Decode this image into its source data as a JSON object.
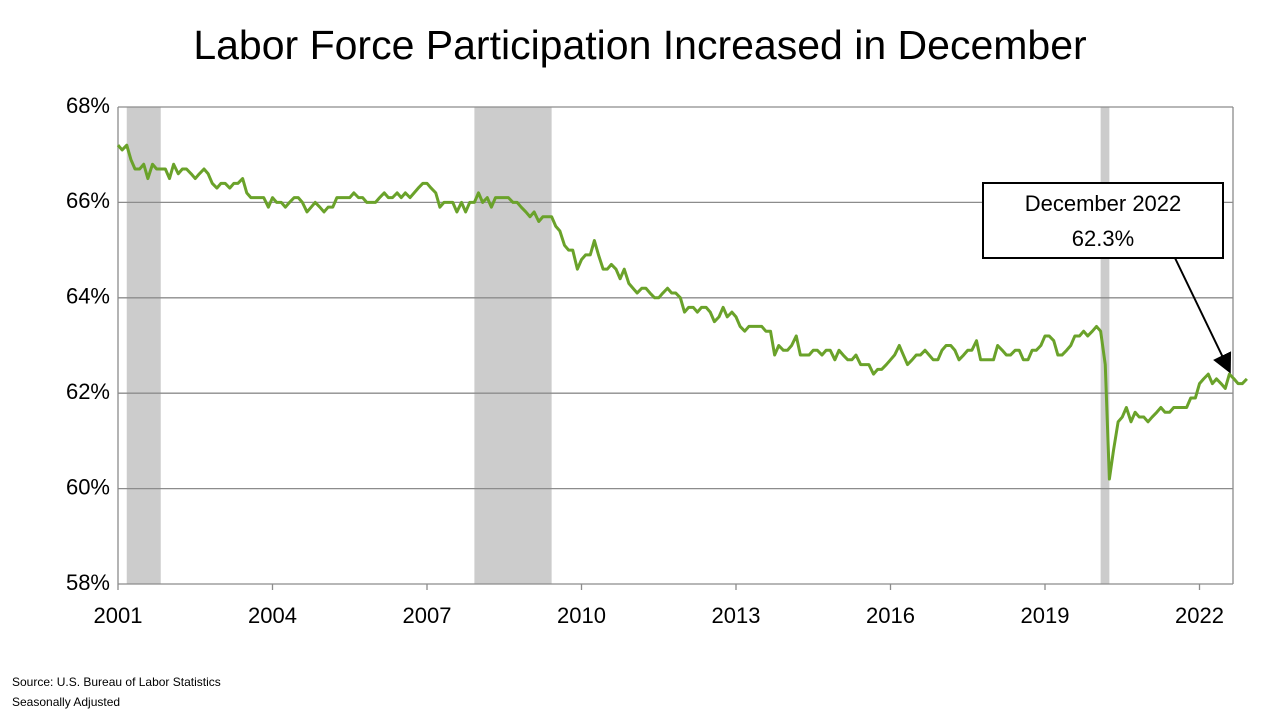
{
  "chart_data": {
    "type": "line",
    "title": "Labor Force Participation Increased in December",
    "color": "#6aa22a",
    "shade_color": "#cccccc",
    "grid": true,
    "xlim": [
      2001,
      2023
    ],
    "xticks": [
      2001,
      2004,
      2007,
      2010,
      2013,
      2016,
      2019,
      2022
    ],
    "ylim": [
      58,
      68
    ],
    "yticks": [
      {
        "value": 58,
        "label": "58%"
      },
      {
        "value": 60,
        "label": "60%"
      },
      {
        "value": 62,
        "label": "62%"
      },
      {
        "value": 64,
        "label": "64%"
      },
      {
        "value": 66,
        "label": "66%"
      },
      {
        "value": 68,
        "label": "68%"
      }
    ],
    "shaded_periods": [
      [
        2001.17,
        2001.83
      ],
      [
        2007.92,
        2009.42
      ],
      [
        2020.08,
        2020.25
      ]
    ],
    "annotation": {
      "lines": [
        "December 2022",
        "62.3%"
      ]
    },
    "notes": [
      "Source: U.S. Bureau of Labor Statistics",
      "Seasonally Adjusted"
    ],
    "x": [
      2001.0,
      2001.08,
      2001.17,
      2001.25,
      2001.33,
      2001.42,
      2001.5,
      2001.58,
      2001.67,
      2001.75,
      2001.83,
      2001.92,
      2002.0,
      2002.08,
      2002.17,
      2002.25,
      2002.33,
      2002.42,
      2002.5,
      2002.58,
      2002.67,
      2002.75,
      2002.83,
      2002.92,
      2003.0,
      2003.08,
      2003.17,
      2003.25,
      2003.33,
      2003.42,
      2003.5,
      2003.58,
      2003.67,
      2003.75,
      2003.83,
      2003.92,
      2004.0,
      2004.08,
      2004.17,
      2004.25,
      2004.33,
      2004.42,
      2004.5,
      2004.58,
      2004.67,
      2004.75,
      2004.83,
      2004.92,
      2005.0,
      2005.08,
      2005.17,
      2005.25,
      2005.33,
      2005.42,
      2005.5,
      2005.58,
      2005.67,
      2005.75,
      2005.83,
      2005.92,
      2006.0,
      2006.08,
      2006.17,
      2006.25,
      2006.33,
      2006.42,
      2006.5,
      2006.58,
      2006.67,
      2006.75,
      2006.83,
      2006.92,
      2007.0,
      2007.08,
      2007.17,
      2007.25,
      2007.33,
      2007.42,
      2007.5,
      2007.58,
      2007.67,
      2007.75,
      2007.83,
      2007.92,
      2008.0,
      2008.08,
      2008.17,
      2008.25,
      2008.33,
      2008.42,
      2008.5,
      2008.58,
      2008.67,
      2008.75,
      2008.83,
      2008.92,
      2009.0,
      2009.08,
      2009.17,
      2009.25,
      2009.33,
      2009.42,
      2009.5,
      2009.58,
      2009.67,
      2009.75,
      2009.83,
      2009.92,
      2010.0,
      2010.08,
      2010.17,
      2010.25,
      2010.33,
      2010.42,
      2010.5,
      2010.58,
      2010.67,
      2010.75,
      2010.83,
      2010.92,
      2011.0,
      2011.08,
      2011.17,
      2011.25,
      2011.33,
      2011.42,
      2011.5,
      2011.58,
      2011.67,
      2011.75,
      2011.83,
      2011.92,
      2012.0,
      2012.08,
      2012.17,
      2012.25,
      2012.33,
      2012.42,
      2012.5,
      2012.58,
      2012.67,
      2012.75,
      2012.83,
      2012.92,
      2013.0,
      2013.08,
      2013.17,
      2013.25,
      2013.33,
      2013.42,
      2013.5,
      2013.58,
      2013.67,
      2013.75,
      2013.83,
      2013.92,
      2014.0,
      2014.08,
      2014.17,
      2014.25,
      2014.33,
      2014.42,
      2014.5,
      2014.58,
      2014.67,
      2014.75,
      2014.83,
      2014.92,
      2015.0,
      2015.08,
      2015.17,
      2015.25,
      2015.33,
      2015.42,
      2015.5,
      2015.58,
      2015.67,
      2015.75,
      2015.83,
      2015.92,
      2016.0,
      2016.08,
      2016.17,
      2016.25,
      2016.33,
      2016.42,
      2016.5,
      2016.58,
      2016.67,
      2016.75,
      2016.83,
      2016.92,
      2017.0,
      2017.08,
      2017.17,
      2017.25,
      2017.33,
      2017.42,
      2017.5,
      2017.58,
      2017.67,
      2017.75,
      2017.83,
      2017.92,
      2018.0,
      2018.08,
      2018.17,
      2018.25,
      2018.33,
      2018.42,
      2018.5,
      2018.58,
      2018.67,
      2018.75,
      2018.83,
      2018.92,
      2019.0,
      2019.08,
      2019.17,
      2019.25,
      2019.33,
      2019.42,
      2019.5,
      2019.58,
      2019.67,
      2019.75,
      2019.83,
      2019.92,
      2020.0,
      2020.08,
      2020.17,
      2020.25,
      2020.33,
      2020.42,
      2020.5,
      2020.58,
      2020.67,
      2020.75,
      2020.83,
      2020.92,
      2021.0,
      2021.08,
      2021.17,
      2021.25,
      2021.33,
      2021.42,
      2021.5,
      2021.58,
      2021.67,
      2021.75,
      2021.83,
      2021.92,
      2022.0,
      2022.08,
      2022.17,
      2022.25,
      2022.33,
      2022.42,
      2022.5,
      2022.58,
      2022.67,
      2022.75,
      2022.83,
      2022.92
    ],
    "values": [
      67.2,
      67.1,
      67.2,
      66.9,
      66.7,
      66.7,
      66.8,
      66.5,
      66.8,
      66.7,
      66.7,
      66.7,
      66.5,
      66.8,
      66.6,
      66.7,
      66.7,
      66.6,
      66.5,
      66.6,
      66.7,
      66.6,
      66.4,
      66.3,
      66.4,
      66.4,
      66.3,
      66.4,
      66.4,
      66.5,
      66.2,
      66.1,
      66.1,
      66.1,
      66.1,
      65.9,
      66.1,
      66.0,
      66.0,
      65.9,
      66.0,
      66.1,
      66.1,
      66.0,
      65.8,
      65.9,
      66.0,
      65.9,
      65.8,
      65.9,
      65.9,
      66.1,
      66.1,
      66.1,
      66.1,
      66.2,
      66.1,
      66.1,
      66.0,
      66.0,
      66.0,
      66.1,
      66.2,
      66.1,
      66.1,
      66.2,
      66.1,
      66.2,
      66.1,
      66.2,
      66.3,
      66.4,
      66.4,
      66.3,
      66.2,
      65.9,
      66.0,
      66.0,
      66.0,
      65.8,
      66.0,
      65.8,
      66.0,
      66.0,
      66.2,
      66.0,
      66.1,
      65.9,
      66.1,
      66.1,
      66.1,
      66.1,
      66.0,
      66.0,
      65.9,
      65.8,
      65.7,
      65.8,
      65.6,
      65.7,
      65.7,
      65.7,
      65.5,
      65.4,
      65.1,
      65.0,
      65.0,
      64.6,
      64.8,
      64.9,
      64.9,
      65.2,
      64.9,
      64.6,
      64.6,
      64.7,
      64.6,
      64.4,
      64.6,
      64.3,
      64.2,
      64.1,
      64.2,
      64.2,
      64.1,
      64.0,
      64.0,
      64.1,
      64.2,
      64.1,
      64.1,
      64.0,
      63.7,
      63.8,
      63.8,
      63.7,
      63.8,
      63.8,
      63.7,
      63.5,
      63.6,
      63.8,
      63.6,
      63.7,
      63.6,
      63.4,
      63.3,
      63.4,
      63.4,
      63.4,
      63.4,
      63.3,
      63.3,
      62.8,
      63.0,
      62.9,
      62.9,
      63.0,
      63.2,
      62.8,
      62.8,
      62.8,
      62.9,
      62.9,
      62.8,
      62.9,
      62.9,
      62.7,
      62.9,
      62.8,
      62.7,
      62.7,
      62.8,
      62.6,
      62.6,
      62.6,
      62.4,
      62.5,
      62.5,
      62.6,
      62.7,
      62.8,
      63.0,
      62.8,
      62.6,
      62.7,
      62.8,
      62.8,
      62.9,
      62.8,
      62.7,
      62.7,
      62.9,
      63.0,
      63.0,
      62.9,
      62.7,
      62.8,
      62.9,
      62.9,
      63.1,
      62.7,
      62.7,
      62.7,
      62.7,
      63.0,
      62.9,
      62.8,
      62.8,
      62.9,
      62.9,
      62.7,
      62.7,
      62.9,
      62.9,
      63.0,
      63.2,
      63.2,
      63.1,
      62.8,
      62.8,
      62.9,
      63.0,
      63.2,
      63.2,
      63.3,
      63.2,
      63.3,
      63.4,
      63.3,
      62.6,
      60.2,
      60.8,
      61.4,
      61.5,
      61.7,
      61.4,
      61.6,
      61.5,
      61.5,
      61.4,
      61.5,
      61.6,
      61.7,
      61.6,
      61.6,
      61.7,
      61.7,
      61.7,
      61.7,
      61.9,
      61.9,
      62.2,
      62.3,
      62.4,
      62.2,
      62.3,
      62.2,
      62.1,
      62.4,
      62.3,
      62.2,
      62.2,
      62.3
    ]
  }
}
